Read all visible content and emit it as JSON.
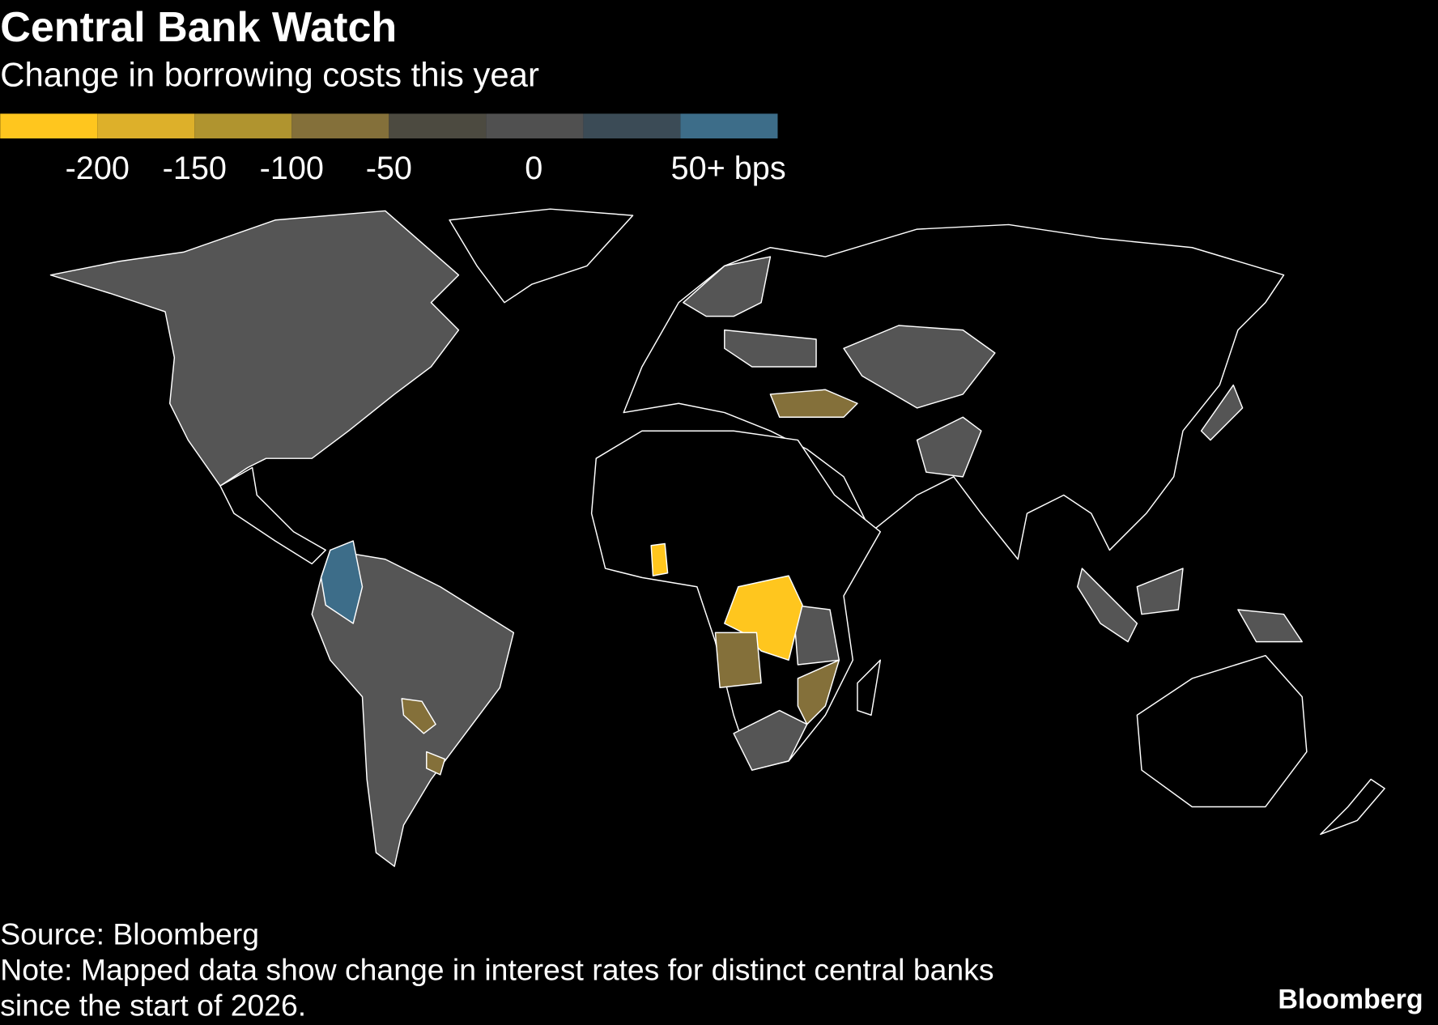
{
  "header": {
    "title": "Central Bank Watch",
    "subtitle": "Change in borrowing costs this year"
  },
  "legend": {
    "colors": [
      "#ffc61e",
      "#ddb02a",
      "#b0942f",
      "#84703a",
      "#4c4a40",
      "#505050",
      "#3b4b56",
      "#3d6d89"
    ],
    "labels": [
      "-200",
      "-150",
      "-100",
      "-50",
      "0",
      "50+ bps"
    ]
  },
  "footer": {
    "source": "Source: Bloomberg",
    "note_line1": "Note: Mapped data show change in interest rates for distinct central banks",
    "note_line2": "since the start of 2026.",
    "logo": "Bloomberg"
  }
}
